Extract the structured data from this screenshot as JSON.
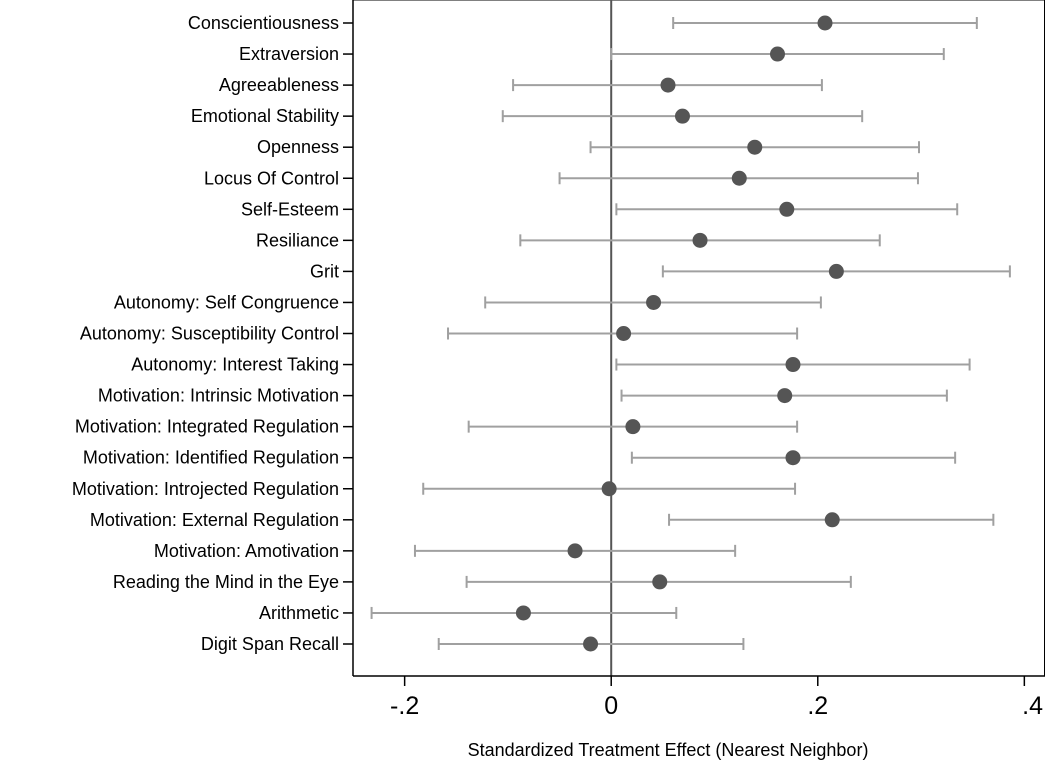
{
  "chart_data": {
    "type": "scatter",
    "orientation": "horizontal",
    "title": "",
    "xlabel": "Standardized Treatment Effect (Nearest Neighbor)",
    "ylabel": "",
    "xlim": [
      -0.25,
      0.42
    ],
    "x_ticks": [
      -0.2,
      0,
      0.2,
      0.4
    ],
    "x_tick_labels": [
      "-.2",
      "0",
      ".2",
      ".4"
    ],
    "reference_line_x": 0,
    "grid": false,
    "legend": "none",
    "colors": {
      "point": "#555555",
      "interval": "#a0a0a0",
      "reference_line": "#555555",
      "axis": "#000000"
    },
    "categories": [
      "Conscientiousness",
      "Extraversion",
      "Agreeableness",
      "Emotional Stability",
      "Openness",
      "Locus Of Control",
      "Self-Esteem",
      "Resiliance",
      "Grit",
      "Autonomy: Self Congruence",
      "Autonomy: Susceptibility Control",
      "Autonomy: Interest Taking",
      "Motivation: Intrinsic Motivation",
      "Motivation: Integrated Regulation",
      "Motivation: Identified Regulation",
      "Motivation: Introjected Regulation",
      "Motivation: External Regulation",
      "Motivation: Amotivation",
      "Reading the Mind in the Eye",
      "Arithmetic",
      "Digit Span Recall"
    ],
    "estimates": [
      0.207,
      0.161,
      0.055,
      0.069,
      0.139,
      0.124,
      0.17,
      0.086,
      0.218,
      0.041,
      0.012,
      0.176,
      0.168,
      0.021,
      0.176,
      -0.002,
      0.214,
      -0.035,
      0.047,
      -0.085,
      -0.02
    ],
    "ci_low": [
      0.06,
      0.0,
      -0.095,
      -0.105,
      -0.02,
      -0.05,
      0.005,
      -0.088,
      0.05,
      -0.122,
      -0.158,
      0.005,
      0.01,
      -0.138,
      0.02,
      -0.182,
      0.056,
      -0.19,
      -0.14,
      -0.232,
      -0.167
    ],
    "ci_high": [
      0.354,
      0.322,
      0.204,
      0.243,
      0.298,
      0.297,
      0.335,
      0.26,
      0.386,
      0.203,
      0.18,
      0.347,
      0.325,
      0.18,
      0.333,
      0.178,
      0.37,
      0.12,
      0.232,
      0.063,
      0.128
    ]
  }
}
